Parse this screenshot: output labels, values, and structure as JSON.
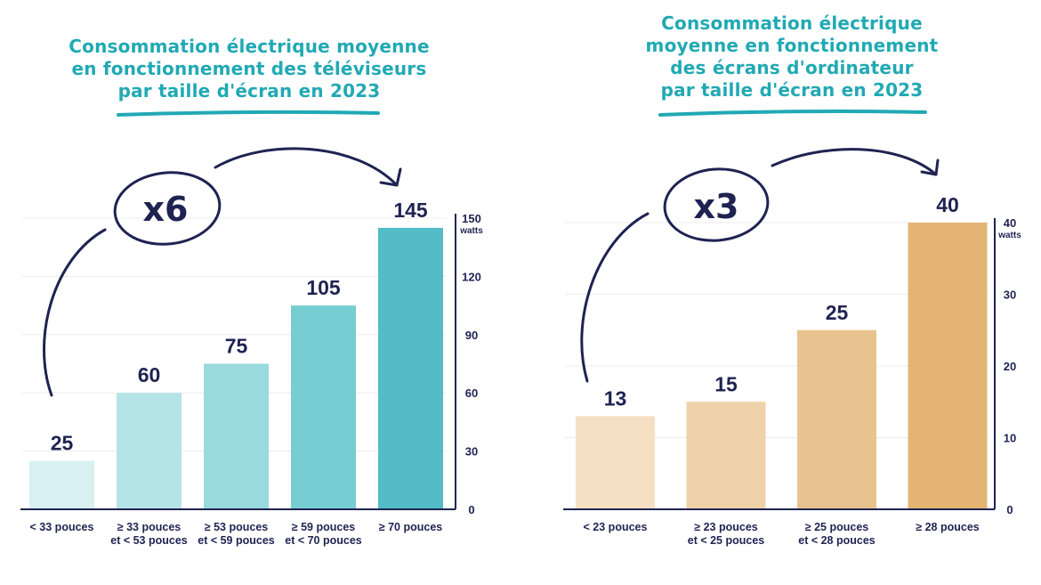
{
  "chart_data": [
    {
      "type": "bar",
      "title_lines": [
        "Consommation électrique moyenne",
        "en fonctionnement des téléviseurs",
        "par taille d'écran en 2023"
      ],
      "categories": [
        [
          "< 33 pouces"
        ],
        [
          "≥ 33 pouces",
          "et < 53 pouces"
        ],
        [
          "≥ 53 pouces",
          "et < 59 pouces"
        ],
        [
          "≥ 59 pouces",
          "et < 70 pouces"
        ],
        [
          "≥ 70 pouces"
        ]
      ],
      "values": [
        25,
        60,
        75,
        105,
        145
      ],
      "data_labels": [
        "25",
        "60",
        "75",
        "105",
        "145"
      ],
      "colors": [
        "#d8f0f2",
        "#b5e4e7",
        "#98dade",
        "#76cdd2",
        "#53bcc6"
      ],
      "ylim": [
        0,
        150
      ],
      "yticks": [
        0,
        30,
        60,
        90,
        120,
        150
      ],
      "yunit": "watts",
      "grid": true,
      "axis_side": "right",
      "annotation": "x6"
    },
    {
      "type": "bar",
      "title_lines": [
        "Consommation électrique",
        "moyenne en fonctionnement",
        "des écrans d'ordinateur",
        "par taille d'écran en 2023"
      ],
      "categories": [
        [
          "< 23 pouces"
        ],
        [
          "≥ 23 pouces",
          "et < 25 pouces"
        ],
        [
          "≥ 25 pouces",
          "et < 28 pouces"
        ],
        [
          "≥ 28 pouces"
        ]
      ],
      "values": [
        13,
        15,
        25,
        40
      ],
      "data_labels": [
        "13",
        "15",
        "25",
        "40"
      ],
      "colors": [
        "#f5e0c3",
        "#efd2a9",
        "#e9c38f",
        "#e3b472"
      ],
      "ylim": [
        0,
        40
      ],
      "yticks": [
        0,
        10,
        20,
        30,
        40
      ],
      "yunit": "watts",
      "grid": true,
      "axis_side": "right",
      "annotation": "x3"
    }
  ],
  "colors": {
    "title": "#21a9b4",
    "navy": "#1f2352",
    "grid": "#ececec"
  }
}
